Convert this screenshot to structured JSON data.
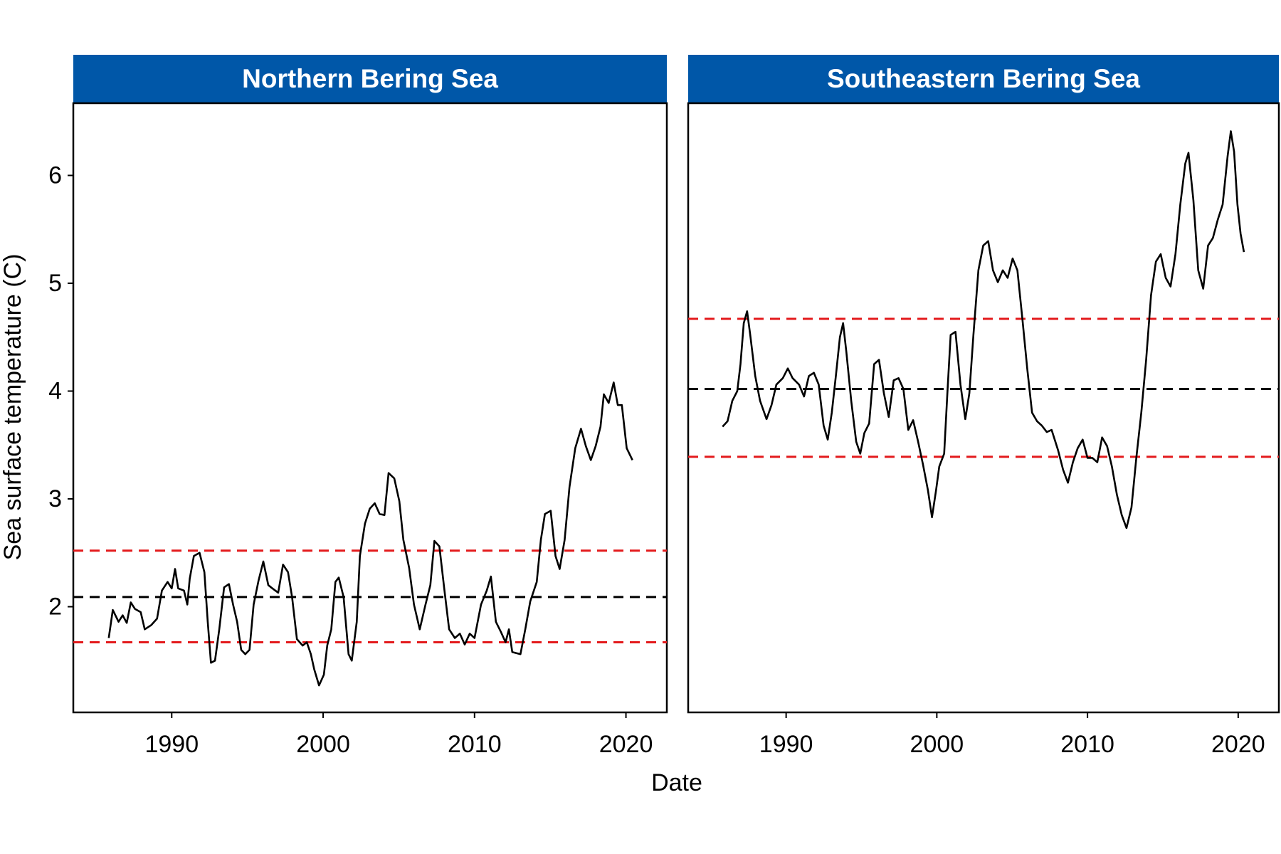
{
  "ylabel": "Sea surface temperature (C)",
  "xlabel": "Date",
  "chart_data": [
    {
      "type": "line",
      "title": "Northern Bering Sea",
      "strip_color": "#0057a8",
      "color": "#000000",
      "x": [
        1985.84,
        1986.11,
        1986.49,
        1986.76,
        1987.03,
        1987.3,
        1987.57,
        1987.95,
        1988.22,
        1988.65,
        1989.03,
        1989.35,
        1989.73,
        1990.0,
        1990.22,
        1990.43,
        1990.81,
        1991.03,
        1991.19,
        1991.46,
        1991.84,
        1992.16,
        1992.38,
        1992.59,
        1992.86,
        1993.14,
        1993.46,
        1993.78,
        1994.05,
        1994.32,
        1994.59,
        1994.86,
        1995.14,
        1995.41,
        1995.73,
        1996.05,
        1996.38,
        1996.65,
        1997.03,
        1997.35,
        1997.68,
        1997.95,
        1998.27,
        1998.65,
        1998.92,
        1999.19,
        1999.41,
        1999.73,
        2000.05,
        2000.27,
        2000.54,
        2000.81,
        2001.03,
        2001.35,
        2001.68,
        2001.89,
        2002.22,
        2002.43,
        2002.76,
        2003.08,
        2003.41,
        2003.73,
        2004.05,
        2004.32,
        2004.7,
        2005.03,
        2005.3,
        2005.68,
        2006.0,
        2006.38,
        2006.76,
        2007.08,
        2007.35,
        2007.68,
        2008.0,
        2008.32,
        2008.7,
        2009.03,
        2009.35,
        2009.68,
        2010.0,
        2010.43,
        2010.81,
        2011.08,
        2011.41,
        2011.73,
        2012.05,
        2012.27,
        2012.49,
        2013.03,
        2013.35,
        2013.68,
        2014.11,
        2014.38,
        2014.65,
        2015.03,
        2015.35,
        2015.62,
        2015.95,
        2016.27,
        2016.65,
        2017.03,
        2017.35,
        2017.68,
        2018.0,
        2018.32,
        2018.54,
        2018.86,
        2019.19,
        2019.46,
        2019.73,
        2020.05,
        2020.43
      ],
      "values": [
        1.71,
        1.97,
        1.86,
        1.92,
        1.85,
        2.04,
        1.98,
        1.95,
        1.79,
        1.83,
        1.89,
        2.15,
        2.23,
        2.17,
        2.35,
        2.17,
        2.15,
        2.02,
        2.26,
        2.47,
        2.5,
        2.32,
        1.86,
        1.48,
        1.5,
        1.79,
        2.18,
        2.21,
        2.02,
        1.86,
        1.6,
        1.56,
        1.6,
        2.02,
        2.24,
        2.42,
        2.2,
        2.17,
        2.13,
        2.39,
        2.32,
        2.09,
        1.7,
        1.64,
        1.67,
        1.56,
        1.42,
        1.27,
        1.37,
        1.64,
        1.79,
        2.23,
        2.27,
        2.09,
        1.56,
        1.5,
        1.86,
        2.47,
        2.77,
        2.91,
        2.96,
        2.86,
        2.85,
        3.24,
        3.19,
        2.98,
        2.62,
        2.36,
        2.02,
        1.79,
        2.02,
        2.2,
        2.61,
        2.56,
        2.17,
        1.79,
        1.71,
        1.75,
        1.65,
        1.75,
        1.71,
        2.02,
        2.15,
        2.28,
        1.86,
        1.77,
        1.67,
        1.79,
        1.58,
        1.56,
        1.79,
        2.05,
        2.23,
        2.62,
        2.86,
        2.89,
        2.47,
        2.35,
        2.62,
        3.11,
        3.47,
        3.65,
        3.49,
        3.36,
        3.49,
        3.67,
        3.97,
        3.89,
        4.08,
        3.87,
        3.87,
        3.47,
        3.36
      ],
      "reference_lines": [
        {
          "value": 2.52,
          "color": "#e31a1c"
        },
        {
          "value": 2.09,
          "color": "#000000"
        },
        {
          "value": 1.67,
          "color": "#e31a1c"
        }
      ],
      "xlim": [
        1983.5,
        2022.7
      ],
      "xticks": [
        1990,
        2000,
        2010,
        2020
      ],
      "ylim": [
        1.02,
        6.67
      ],
      "yticks": [
        2,
        3,
        4,
        5,
        6
      ]
    },
    {
      "type": "line",
      "title": "Southeastern Bering Sea",
      "strip_color": "#0057a8",
      "color": "#000000",
      "x": [
        1985.78,
        1986.11,
        1986.43,
        1986.76,
        1986.97,
        1987.19,
        1987.41,
        1987.62,
        1987.95,
        1988.27,
        1988.7,
        1989.03,
        1989.35,
        1989.78,
        1990.11,
        1990.43,
        1990.86,
        1991.19,
        1991.51,
        1991.84,
        1992.16,
        1992.49,
        1992.76,
        1993.03,
        1993.3,
        1993.57,
        1993.78,
        1994.0,
        1994.32,
        1994.65,
        1994.92,
        1995.19,
        1995.51,
        1995.84,
        1996.16,
        1996.49,
        1996.81,
        1997.14,
        1997.46,
        1997.78,
        1998.11,
        1998.43,
        1998.76,
        1999.08,
        1999.41,
        1999.68,
        1999.95,
        2000.16,
        2000.49,
        2000.7,
        2000.92,
        2001.24,
        2001.57,
        2001.89,
        2002.16,
        2002.43,
        2002.76,
        2003.08,
        2003.41,
        2003.73,
        2004.05,
        2004.38,
        2004.7,
        2005.03,
        2005.35,
        2005.68,
        2006.0,
        2006.32,
        2006.65,
        2006.97,
        2007.3,
        2007.62,
        2008.05,
        2008.38,
        2008.7,
        2009.03,
        2009.35,
        2009.68,
        2010.0,
        2010.32,
        2010.65,
        2010.97,
        2011.3,
        2011.62,
        2011.95,
        2012.27,
        2012.59,
        2012.92,
        2013.24,
        2013.57,
        2013.89,
        2014.22,
        2014.54,
        2014.86,
        2015.19,
        2015.51,
        2015.84,
        2016.16,
        2016.49,
        2016.7,
        2017.03,
        2017.35,
        2017.68,
        2018.0,
        2018.32,
        2018.65,
        2018.97,
        2019.3,
        2019.51,
        2019.73,
        2019.95,
        2020.16,
        2020.38
      ],
      "values": [
        3.67,
        3.72,
        3.91,
        4.0,
        4.25,
        4.63,
        4.74,
        4.52,
        4.14,
        3.91,
        3.74,
        3.87,
        4.06,
        4.12,
        4.21,
        4.12,
        4.06,
        3.95,
        4.14,
        4.17,
        4.06,
        3.68,
        3.55,
        3.8,
        4.14,
        4.5,
        4.63,
        4.36,
        3.91,
        3.53,
        3.42,
        3.61,
        3.7,
        4.25,
        4.29,
        3.98,
        3.76,
        4.1,
        4.12,
        4.02,
        3.64,
        3.73,
        3.53,
        3.32,
        3.08,
        2.83,
        3.08,
        3.3,
        3.42,
        3.98,
        4.52,
        4.55,
        4.06,
        3.74,
        3.98,
        4.52,
        5.12,
        5.35,
        5.39,
        5.12,
        5.01,
        5.12,
        5.05,
        5.23,
        5.12,
        4.67,
        4.21,
        3.8,
        3.72,
        3.68,
        3.62,
        3.64,
        3.45,
        3.27,
        3.15,
        3.34,
        3.47,
        3.55,
        3.38,
        3.38,
        3.34,
        3.57,
        3.49,
        3.3,
        3.04,
        2.85,
        2.73,
        2.92,
        3.38,
        3.8,
        4.29,
        4.89,
        5.2,
        5.27,
        5.05,
        4.97,
        5.27,
        5.73,
        6.11,
        6.21,
        5.77,
        5.12,
        4.95,
        5.35,
        5.42,
        5.59,
        5.73,
        6.18,
        6.41,
        6.22,
        5.73,
        5.46,
        5.29
      ],
      "reference_lines": [
        {
          "value": 4.67,
          "color": "#e31a1c"
        },
        {
          "value": 4.02,
          "color": "#000000"
        },
        {
          "value": 3.39,
          "color": "#e31a1c"
        }
      ],
      "xlim": [
        1983.5,
        2022.7
      ],
      "xticks": [
        1990,
        2000,
        2010,
        2020
      ],
      "ylim": [
        1.02,
        6.67
      ],
      "yticks": [
        2,
        3,
        4,
        5,
        6
      ]
    }
  ]
}
